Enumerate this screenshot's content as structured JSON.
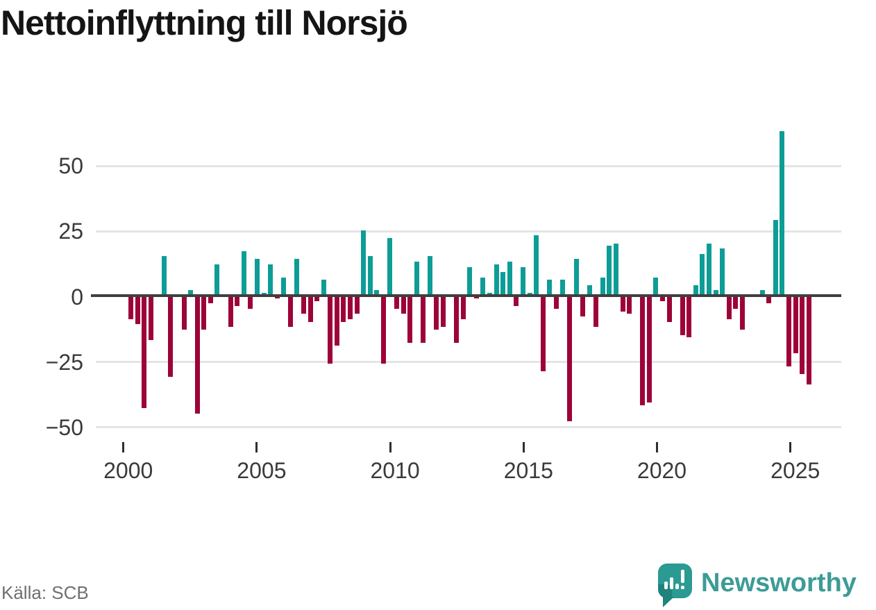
{
  "title": "Nettoinflyttning till Norsjö",
  "source": "Källa: SCB",
  "brand": {
    "name": "Newsworthy",
    "icon": "newsworthy-speech-bubble-chart-icon"
  },
  "colors": {
    "positive": "#0d9d96",
    "negative": "#9d0239",
    "zero_axis": "#3f3f3f",
    "gridline": "#e4e4e4",
    "axis_text": "#3a3a3a",
    "title_text": "#151515",
    "source_text": "#6f6f75",
    "brand_teal": "#3d9b97"
  },
  "chart_data": {
    "type": "bar",
    "title": "Nettoinflyttning till Norsjö",
    "xlabel": "",
    "ylabel": "",
    "frequency": "quarterly",
    "grid": "horizontal",
    "legend": "none",
    "ylim": [
      -55,
      68
    ],
    "yticks": [
      50,
      25,
      0,
      -25,
      -50
    ],
    "xticks": [
      2000,
      2005,
      2010,
      2015,
      2020,
      2025
    ],
    "quarters": [
      "2000K1",
      "2000K2",
      "2000K3",
      "2000K4",
      "2001K1",
      "2001K2",
      "2001K3",
      "2001K4",
      "2002K1",
      "2002K2",
      "2002K3",
      "2002K4",
      "2003K1",
      "2003K2",
      "2003K3",
      "2003K4",
      "2004K1",
      "2004K2",
      "2004K3",
      "2004K4",
      "2005K1",
      "2005K2",
      "2005K3",
      "2005K4",
      "2006K1",
      "2006K2",
      "2006K3",
      "2006K4",
      "2007K1",
      "2007K2",
      "2007K3",
      "2007K4",
      "2008K1",
      "2008K2",
      "2008K3",
      "2008K4",
      "2009K1",
      "2009K2",
      "2009K3",
      "2009K4",
      "2010K1",
      "2010K2",
      "2010K3",
      "2010K4",
      "2011K1",
      "2011K2",
      "2011K3",
      "2011K4",
      "2012K1",
      "2012K2",
      "2012K3",
      "2012K4",
      "2013K1",
      "2013K2",
      "2013K3",
      "2013K4",
      "2014K1",
      "2014K2",
      "2014K3",
      "2014K4",
      "2015K1",
      "2015K2",
      "2015K3",
      "2015K4",
      "2016K1",
      "2016K2",
      "2016K3",
      "2016K4",
      "2017K1",
      "2017K2",
      "2017K3",
      "2017K4",
      "2018K1",
      "2018K2",
      "2018K3",
      "2018K4",
      "2019K1",
      "2019K2",
      "2019K3",
      "2019K4",
      "2020K1",
      "2020K2",
      "2020K3",
      "2020K4",
      "2021K1",
      "2021K2",
      "2021K3",
      "2021K4",
      "2022K1",
      "2022K2",
      "2022K3",
      "2022K4",
      "2023K1",
      "2023K2",
      "2023K3",
      "2023K4",
      "2024K1",
      "2024K2",
      "2024K3",
      "2024K4",
      "2025K1",
      "2025K2",
      "2025K3"
    ],
    "values": [
      -9,
      -11,
      -43,
      -17,
      0,
      15,
      -31,
      0,
      -13,
      2,
      -45,
      -13,
      -3,
      12,
      0,
      -12,
      -4,
      17,
      -5,
      14,
      1,
      12,
      -1,
      7,
      -12,
      14,
      -7,
      -10,
      -2,
      6,
      -26,
      -19,
      -10,
      -9,
      -7,
      25,
      15,
      2,
      -26,
      22,
      -5,
      -7,
      -18,
      13,
      -18,
      15,
      -13,
      -12,
      0,
      -18,
      -9,
      11,
      -1,
      7,
      1,
      12,
      9,
      13,
      -4,
      11,
      1,
      23,
      -29,
      6,
      -5,
      6,
      -48,
      14,
      -8,
      4,
      -12,
      7,
      19,
      20,
      -6,
      -7,
      0,
      -42,
      -41,
      7,
      -2,
      -10,
      0,
      -15,
      -16,
      4,
      16,
      20,
      2,
      18,
      -9,
      -5,
      -13,
      0,
      0,
      2,
      -3,
      29,
      63,
      -27,
      -22,
      -30,
      -34
    ]
  }
}
